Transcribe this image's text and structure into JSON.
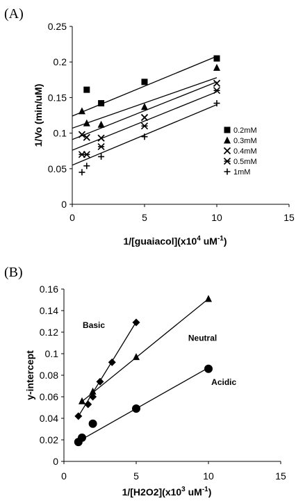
{
  "chart_data": [
    {
      "type": "scatter",
      "panel_label": "(A)",
      "xlabel_main": "1/[guaiacol](x10",
      "xlabel_sup": "4",
      "xlabel_rest": " uM",
      "xlabel_sup2": "-1",
      "xlabel_end": ")",
      "ylabel": "1/Vo (min/uM)",
      "xlim": [
        0,
        15
      ],
      "ylim": [
        0,
        0.25
      ],
      "xticks": [
        "0",
        "5",
        "10",
        "15"
      ],
      "xtick_values": [
        0,
        5,
        10,
        15
      ],
      "yticks": [
        "0",
        "0.05",
        "0.1",
        "0.15",
        "0.2",
        "0.25"
      ],
      "ytick_values": [
        0,
        0.05,
        0.1,
        0.15,
        0.2,
        0.25
      ],
      "legend_position": "right",
      "series": [
        {
          "name": "0.2mM",
          "marker": "square",
          "x": [
            1,
            2,
            5,
            10
          ],
          "y": [
            0.161,
            0.142,
            0.172,
            0.205
          ],
          "line": [
            0.124,
            0.0084
          ]
        },
        {
          "name": "0.3mM",
          "marker": "triangle",
          "x": [
            0.67,
            1,
            2,
            5,
            10
          ],
          "y": [
            0.131,
            0.114,
            0.112,
            0.137,
            0.192
          ],
          "line": [
            0.107,
            0.0071
          ]
        },
        {
          "name": "0.4mM",
          "marker": "x",
          "x": [
            0.67,
            1,
            2,
            5,
            10
          ],
          "y": [
            0.098,
            0.094,
            0.093,
            0.122,
            0.17
          ],
          "line": [
            0.091,
            0.0081
          ]
        },
        {
          "name": "0.5mM",
          "marker": "asterisk",
          "x": [
            0.67,
            1,
            2,
            5,
            10
          ],
          "y": [
            0.07,
            0.07,
            0.081,
            0.11,
            0.16
          ],
          "line": [
            0.076,
            0.0082
          ]
        },
        {
          "name": "1mM",
          "marker": "plus",
          "x": [
            0.67,
            1,
            2,
            5,
            10
          ],
          "y": [
            0.045,
            0.054,
            0.067,
            0.095,
            0.142
          ],
          "line": [
            0.055,
            0.0085
          ]
        }
      ]
    },
    {
      "type": "scatter",
      "panel_label": "(B)",
      "xlabel_main": "1/[H2O2](x10",
      "xlabel_sup": "3",
      "xlabel_rest": " uM",
      "xlabel_sup2": "-1",
      "xlabel_end": ")",
      "ylabel": "y-intercept",
      "xlim": [
        0,
        15
      ],
      "ylim": [
        0,
        0.16
      ],
      "xticks": [
        "0",
        "5",
        "10",
        "15"
      ],
      "xtick_values": [
        0,
        5,
        10,
        15
      ],
      "yticks": [
        "0",
        "0.02",
        "0.04",
        "0.06",
        "0.08",
        "0.1",
        "0.12",
        "0.14",
        "0.16"
      ],
      "ytick_values": [
        0,
        0.02,
        0.04,
        0.06,
        0.08,
        0.1,
        0.12,
        0.14,
        0.16
      ],
      "series": [
        {
          "name": "Basic",
          "marker": "diamond",
          "x": [
            1,
            1.67,
            2,
            2.5,
            3.33,
            5
          ],
          "y": [
            0.042,
            0.053,
            0.06,
            0.074,
            0.092,
            0.129
          ],
          "line": [
            0.02,
            0.0219,
            1,
            5
          ]
        },
        {
          "name": "Neutral",
          "marker": "triangle",
          "x": [
            1.25,
            2,
            5,
            10
          ],
          "y": [
            0.056,
            0.065,
            0.097,
            0.151
          ],
          "line": [
            0.042,
            0.0109,
            1.25,
            10
          ]
        },
        {
          "name": "Acidic",
          "marker": "circle",
          "x": [
            1,
            1.25,
            2,
            5,
            10
          ],
          "y": [
            0.018,
            0.022,
            0.035,
            0.049,
            0.086
          ],
          "line": [
            0.011,
            0.0076,
            1,
            10
          ]
        }
      ],
      "annotations": [
        {
          "text": "Basic",
          "x": 1.3,
          "y": 0.124
        },
        {
          "text": "Neutral",
          "x": 8.6,
          "y": 0.112
        },
        {
          "text": "Acidic",
          "x": 10.2,
          "y": 0.071
        }
      ]
    }
  ]
}
